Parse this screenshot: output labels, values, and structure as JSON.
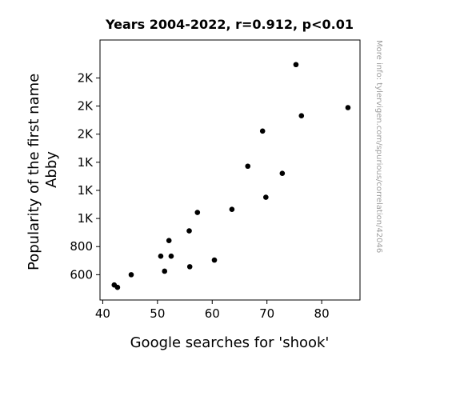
{
  "chart_data": {
    "type": "scatter",
    "title": "Years 2004-2022, r=0.912, p<0.01",
    "xlabel": "Google searches for 'shook'",
    "ylabel_lines": [
      "Popularity of the first name",
      "Abby"
    ],
    "watermark": "More info: tylervigen.com/spurious/correlation/42046",
    "xlim": [
      39.5,
      87
    ],
    "ylim": [
      420,
      2270
    ],
    "x_ticks": [
      {
        "value": 40,
        "label": "40"
      },
      {
        "value": 50,
        "label": "50"
      },
      {
        "value": 60,
        "label": "60"
      },
      {
        "value": 70,
        "label": "70"
      },
      {
        "value": 80,
        "label": "80"
      }
    ],
    "y_ticks": [
      {
        "value": 600,
        "label": "600"
      },
      {
        "value": 800,
        "label": "800"
      },
      {
        "value": 1000,
        "label": "1K"
      },
      {
        "value": 1200,
        "label": "1K"
      },
      {
        "value": 1400,
        "label": "1K"
      },
      {
        "value": 1600,
        "label": "2K"
      },
      {
        "value": 1800,
        "label": "2K"
      },
      {
        "value": 2000,
        "label": "2K"
      }
    ],
    "marker_color": "#000000",
    "grid": false,
    "points": [
      {
        "x": 42.1,
        "y": 527
      },
      {
        "x": 42.7,
        "y": 510
      },
      {
        "x": 45.2,
        "y": 600
      },
      {
        "x": 50.6,
        "y": 732
      },
      {
        "x": 51.3,
        "y": 625
      },
      {
        "x": 52.1,
        "y": 843
      },
      {
        "x": 52.5,
        "y": 732
      },
      {
        "x": 55.8,
        "y": 912
      },
      {
        "x": 55.9,
        "y": 657
      },
      {
        "x": 57.3,
        "y": 1043
      },
      {
        "x": 60.4,
        "y": 704
      },
      {
        "x": 63.6,
        "y": 1065
      },
      {
        "x": 66.5,
        "y": 1372
      },
      {
        "x": 69.2,
        "y": 1622
      },
      {
        "x": 69.8,
        "y": 1151
      },
      {
        "x": 72.8,
        "y": 1321
      },
      {
        "x": 75.3,
        "y": 2095
      },
      {
        "x": 76.3,
        "y": 1731
      },
      {
        "x": 84.8,
        "y": 1789
      }
    ]
  }
}
